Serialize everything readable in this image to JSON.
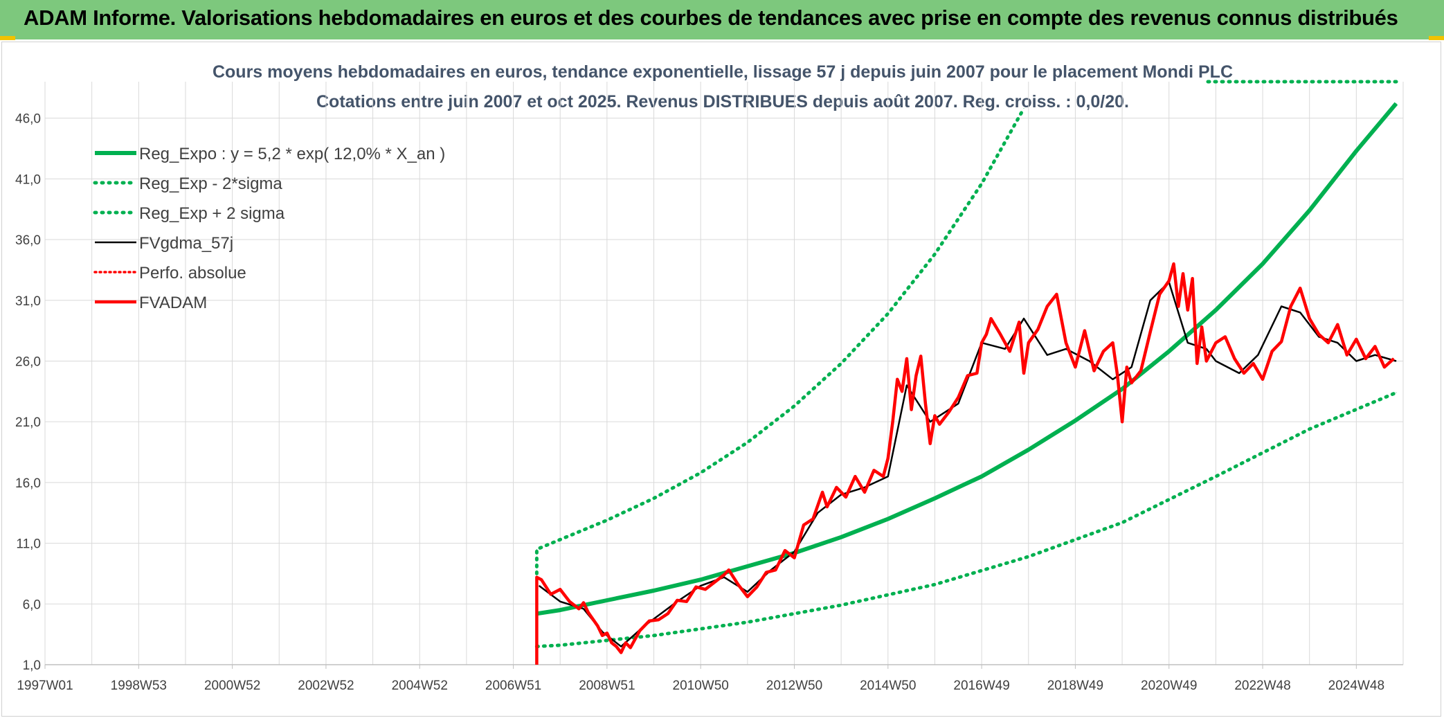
{
  "header": {
    "title": "ADAM Informe. Valorisations hebdomadaires en euros et des courbes de tendances avec prise en compte des revenus connus distribués"
  },
  "colors": {
    "header_bg": "#7dc87d",
    "green": "#00b050",
    "red": "#ff0000",
    "black": "#000000"
  },
  "chart_data": {
    "type": "line",
    "title": "Cours moyens hebdomadaires en euros, tendance exponentielle, lissage 57 j depuis juin 2007 pour le placement Mondi PLC",
    "subtitle": "Cotations entre juin 2007 et oct 2025. Revenus DISTRIBUES depuis août 2007. Reg. croiss. : 0,0/20.",
    "xlabel": "",
    "ylabel": "",
    "x_tick_labels": [
      "1997W01",
      "1998W53",
      "2000W52",
      "2002W52",
      "2004W52",
      "2006W51",
      "2008W51",
      "2010W50",
      "2012W50",
      "2014W50",
      "2016W49",
      "2018W49",
      "2020W49",
      "2022W48",
      "2024W48"
    ],
    "x_tick_years": [
      1997.0,
      1999.0,
      2001.0,
      2003.0,
      2005.0,
      2007.0,
      2009.0,
      2011.0,
      2013.0,
      2015.0,
      2017.0,
      2019.0,
      2021.0,
      2023.0,
      2025.0
    ],
    "xlim": [
      1997.0,
      2026.0
    ],
    "ylim": [
      1.0,
      49.0
    ],
    "y_ticks": [
      1.0,
      6.0,
      11.0,
      16.0,
      21.0,
      26.0,
      31.0,
      36.0,
      41.0,
      46.0
    ],
    "y_tick_labels": [
      "1,0",
      "6,0",
      "11,0",
      "16,0",
      "21,0",
      "26,0",
      "31,0",
      "36,0",
      "41,0",
      "46,0"
    ],
    "grid": true,
    "legend_position": "top-left",
    "series": [
      {
        "name": "Reg_Expo : y = 5,2 * exp( 12,0% *  X_an )",
        "style": "solid",
        "color": "#00b050",
        "x": [
          2007.5,
          2008,
          2009,
          2010,
          2011,
          2012,
          2013,
          2014,
          2015,
          2016,
          2017,
          2018,
          2019,
          2020,
          2021,
          2022,
          2023,
          2024,
          2025,
          2025.85
        ],
        "y": [
          5.2,
          5.5,
          6.3,
          7.1,
          8.0,
          9.1,
          10.2,
          11.5,
          13.0,
          14.7,
          16.5,
          18.7,
          21.1,
          23.7,
          26.8,
          30.2,
          34.0,
          38.4,
          43.3,
          47.2
        ]
      },
      {
        "name": "Reg_Exp - 2*sigma",
        "style": "dotted",
        "color": "#00b050",
        "x": [
          2007.5,
          2008,
          2010,
          2012,
          2014,
          2016,
          2018,
          2020,
          2022,
          2024,
          2025.85
        ],
        "y": [
          2.5,
          2.6,
          3.4,
          4.5,
          5.9,
          7.6,
          9.9,
          12.7,
          16.5,
          20.4,
          23.4
        ]
      },
      {
        "name": "Reg_Exp + 2 sigma",
        "style": "dotted",
        "color": "#00b050",
        "x": [
          2007.5,
          2007.5,
          2008,
          2009,
          2010,
          2011,
          2012,
          2013,
          2014,
          2015,
          2016,
          2017,
          2017.9
        ],
        "y": [
          8.5,
          10.5,
          11.3,
          12.9,
          14.7,
          16.8,
          19.3,
          22.3,
          25.8,
          29.9,
          34.8,
          40.6,
          46.8
        ]
      },
      {
        "name": "FVgdma_57j",
        "style": "solid",
        "color": "#000000",
        "x": [
          2007.55,
          2008,
          2008.5,
          2008.9,
          2009.3,
          2009.8,
          2010.5,
          2011,
          2011.5,
          2012,
          2012.5,
          2013,
          2013.5,
          2014,
          2014.5,
          2015,
          2015.4,
          2015.9,
          2016.5,
          2017,
          2017.5,
          2017.9,
          2018.4,
          2018.8,
          2019.3,
          2019.8,
          2020.2,
          2020.6,
          2021,
          2021.4,
          2021.8,
          2022,
          2022.5,
          2022.9,
          2023.4,
          2023.8,
          2024.2,
          2024.6,
          2025,
          2025.4,
          2025.85
        ],
        "y": [
          7.5,
          6.2,
          5.6,
          3.7,
          2.5,
          4.2,
          6.2,
          7.5,
          8.2,
          7.0,
          8.8,
          10.3,
          13.5,
          15.0,
          15.6,
          16.5,
          24.0,
          21.0,
          22.5,
          27.5,
          27.0,
          29.5,
          26.5,
          27.0,
          26.0,
          24.5,
          25.5,
          31.0,
          32.5,
          27.5,
          27.0,
          26.0,
          25.0,
          26.5,
          30.5,
          30.0,
          28.0,
          27.5,
          26.0,
          26.5,
          26.0
        ]
      },
      {
        "name": "Perfo. absolue",
        "style": "dotted",
        "color": "#ff0000",
        "x": [
          2007.55,
          2008,
          2008.5,
          2008.9,
          2009.3,
          2009.8,
          2010.5,
          2011,
          2011.5,
          2012,
          2012.5,
          2013,
          2013.5,
          2014,
          2014.5,
          2015,
          2015.4,
          2015.9,
          2016.5,
          2017,
          2017.5,
          2017.9,
          2018.4,
          2018.8,
          2019.3,
          2019.8,
          2020.2,
          2020.6,
          2021,
          2021.4,
          2021.8,
          2022,
          2022.5,
          2022.9,
          2023.4,
          2023.8,
          2024.2,
          2024.6,
          2025,
          2025.4,
          2025.85
        ],
        "y": [
          7.5,
          6.2,
          5.6,
          3.7,
          2.5,
          4.2,
          6.2,
          7.5,
          8.2,
          7.0,
          8.8,
          10.3,
          13.5,
          15.0,
          15.6,
          16.5,
          24.0,
          21.0,
          22.5,
          27.5,
          27.0,
          29.5,
          26.5,
          27.0,
          26.0,
          24.5,
          25.5,
          31.0,
          32.5,
          27.5,
          27.0,
          26.0,
          25.0,
          26.5,
          30.5,
          30.0,
          28.0,
          27.5,
          26.0,
          26.5,
          26.0
        ]
      },
      {
        "name": "FVADAM",
        "style": "solid",
        "color": "#ff0000",
        "x": [
          2007.5,
          2007.5,
          2007.6,
          2007.8,
          2008.0,
          2008.2,
          2008.4,
          2008.5,
          2008.6,
          2008.8,
          2008.9,
          2009.0,
          2009.1,
          2009.2,
          2009.3,
          2009.4,
          2009.5,
          2009.7,
          2009.9,
          2010.1,
          2010.3,
          2010.5,
          2010.7,
          2010.9,
          2011.1,
          2011.3,
          2011.5,
          2011.6,
          2011.8,
          2012.0,
          2012.2,
          2012.4,
          2012.6,
          2012.8,
          2013.0,
          2013.2,
          2013.4,
          2013.6,
          2013.7,
          2013.9,
          2014.1,
          2014.3,
          2014.5,
          2014.7,
          2014.9,
          2015.0,
          2015.1,
          2015.2,
          2015.3,
          2015.4,
          2015.5,
          2015.6,
          2015.7,
          2015.8,
          2015.9,
          2016.0,
          2016.1,
          2016.3,
          2016.5,
          2016.7,
          2016.9,
          2017.0,
          2017.1,
          2017.2,
          2017.4,
          2017.6,
          2017.8,
          2017.9,
          2018.0,
          2018.2,
          2018.4,
          2018.6,
          2018.8,
          2019.0,
          2019.2,
          2019.4,
          2019.6,
          2019.8,
          2019.9,
          2020.0,
          2020.1,
          2020.2,
          2020.4,
          2020.6,
          2020.8,
          2021.0,
          2021.1,
          2021.2,
          2021.3,
          2021.4,
          2021.5,
          2021.6,
          2021.7,
          2021.8,
          2022.0,
          2022.2,
          2022.4,
          2022.6,
          2022.8,
          2023.0,
          2023.2,
          2023.4,
          2023.6,
          2023.8,
          2024.0,
          2024.2,
          2024.4,
          2024.6,
          2024.8,
          2025.0,
          2025.2,
          2025.4,
          2025.6,
          2025.8
        ],
        "y": [
          1.0,
          8.2,
          8.0,
          6.8,
          7.2,
          6.2,
          5.6,
          6.1,
          5.3,
          4.2,
          3.4,
          3.6,
          2.8,
          2.5,
          2.0,
          2.8,
          2.4,
          3.8,
          4.6,
          4.7,
          5.2,
          6.3,
          6.2,
          7.4,
          7.2,
          7.8,
          8.4,
          8.8,
          7.6,
          6.6,
          7.4,
          8.6,
          8.8,
          10.4,
          9.8,
          12.5,
          13.0,
          15.2,
          14.0,
          15.6,
          14.8,
          16.5,
          15.2,
          17.0,
          16.5,
          18.0,
          21.0,
          24.5,
          23.5,
          26.2,
          22.0,
          24.8,
          26.4,
          22.5,
          19.2,
          21.5,
          20.8,
          21.8,
          23.0,
          24.8,
          25.0,
          27.5,
          28.2,
          29.5,
          28.2,
          26.8,
          29.2,
          25.0,
          27.5,
          28.6,
          30.5,
          31.5,
          27.5,
          25.5,
          28.5,
          25.2,
          26.8,
          27.5,
          24.8,
          21.0,
          25.5,
          24.2,
          25.2,
          28.4,
          31.5,
          32.6,
          34.0,
          30.5,
          33.2,
          30.2,
          32.8,
          25.8,
          28.8,
          26.0,
          27.5,
          28.0,
          26.2,
          25.0,
          25.8,
          24.5,
          26.8,
          27.6,
          30.5,
          32.0,
          29.5,
          28.2,
          27.5,
          29.0,
          26.5,
          27.8,
          26.2,
          27.2,
          25.5,
          26.2
        ]
      }
    ]
  }
}
